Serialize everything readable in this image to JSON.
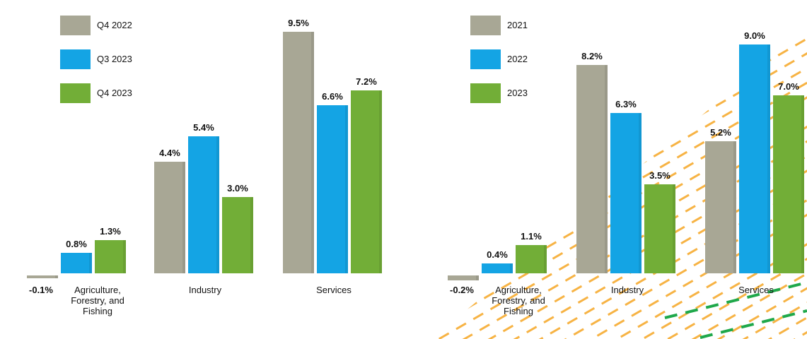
{
  "chart_data": [
    {
      "type": "bar",
      "categories": [
        "Agriculture, Forestry, and Fishing",
        "Industry",
        "Services"
      ],
      "series": [
        {
          "name": "Q4 2022",
          "color": "#a8a795",
          "values": [
            -0.1,
            4.4,
            9.5
          ],
          "value_labels": [
            "-0.1%",
            "4.4%",
            "9.5%"
          ]
        },
        {
          "name": "Q3 2023",
          "color": "#14a4e4",
          "values": [
            0.8,
            5.4,
            6.6
          ],
          "value_labels": [
            "0.8%",
            "5.4%",
            "6.6%"
          ]
        },
        {
          "name": "Q4 2023",
          "color": "#72ae37",
          "values": [
            1.3,
            3.0,
            7.2
          ],
          "value_labels": [
            "1.3%",
            "3.0%",
            "7.2%"
          ]
        }
      ]
    },
    {
      "type": "bar",
      "categories": [
        "Agriculture, Forestry, and Fishing",
        "Industry",
        "Services"
      ],
      "series": [
        {
          "name": "2021",
          "color": "#a8a795",
          "values": [
            -0.2,
            8.2,
            5.2
          ],
          "value_labels": [
            "-0.2%",
            "8.2%",
            "5.2%"
          ]
        },
        {
          "name": "2022",
          "color": "#14a4e4",
          "values": [
            0.4,
            6.3,
            9.0
          ],
          "value_labels": [
            "0.4%",
            "6.3%",
            "9.0%"
          ]
        },
        {
          "name": "2023",
          "color": "#72ae37",
          "values": [
            1.1,
            3.5,
            7.0
          ],
          "value_labels": [
            "1.1%",
            "3.5%",
            "7.0%"
          ]
        }
      ]
    }
  ]
}
